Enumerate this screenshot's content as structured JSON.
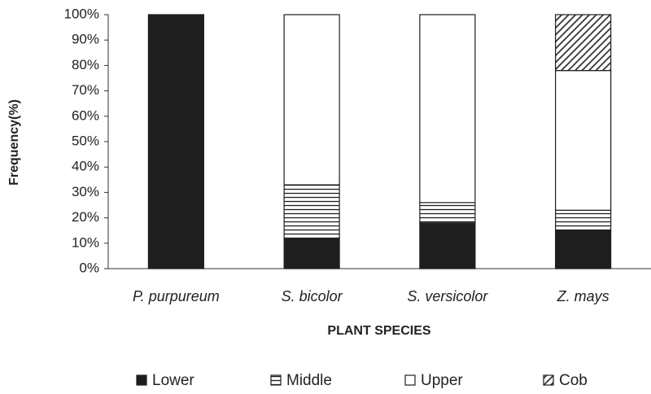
{
  "chart_data": {
    "type": "stacked_bar",
    "categories": [
      "P. purpureum",
      "S. bicolor",
      "S. versicolor",
      "Z. mays"
    ],
    "series": [
      {
        "name": "Lower",
        "color": "#1e1e1e",
        "hatch": "solid",
        "values": [
          100,
          12,
          18,
          15
        ]
      },
      {
        "name": "Middle",
        "color": "#1e1e1e",
        "hatch": "horizontal",
        "values": [
          0,
          21,
          8,
          8
        ]
      },
      {
        "name": "Upper",
        "color": "#ffffff",
        "hatch": "none",
        "values": [
          0,
          67,
          74,
          55
        ]
      },
      {
        "name": "Cob",
        "color": "#1e1e1e",
        "hatch": "diagonal",
        "values": [
          0,
          0,
          0,
          22
        ]
      }
    ],
    "xlabel": "PLANT SPECIES",
    "ylabel": "Frequency(%)",
    "ylim": [
      0,
      100
    ],
    "yticks": [
      {
        "value": 0,
        "label": "0%"
      },
      {
        "value": 10,
        "label": "10%"
      },
      {
        "value": 20,
        "label": "20%"
      },
      {
        "value": 30,
        "label": "30%"
      },
      {
        "value": 40,
        "label": "40%"
      },
      {
        "value": 50,
        "label": "50%"
      },
      {
        "value": 60,
        "label": "60%"
      },
      {
        "value": 70,
        "label": "70%"
      },
      {
        "value": 80,
        "label": "80%"
      },
      {
        "value": 90,
        "label": "90%"
      },
      {
        "value": 100,
        "label": "100%"
      }
    ],
    "legend": "bottom",
    "grid": false
  }
}
